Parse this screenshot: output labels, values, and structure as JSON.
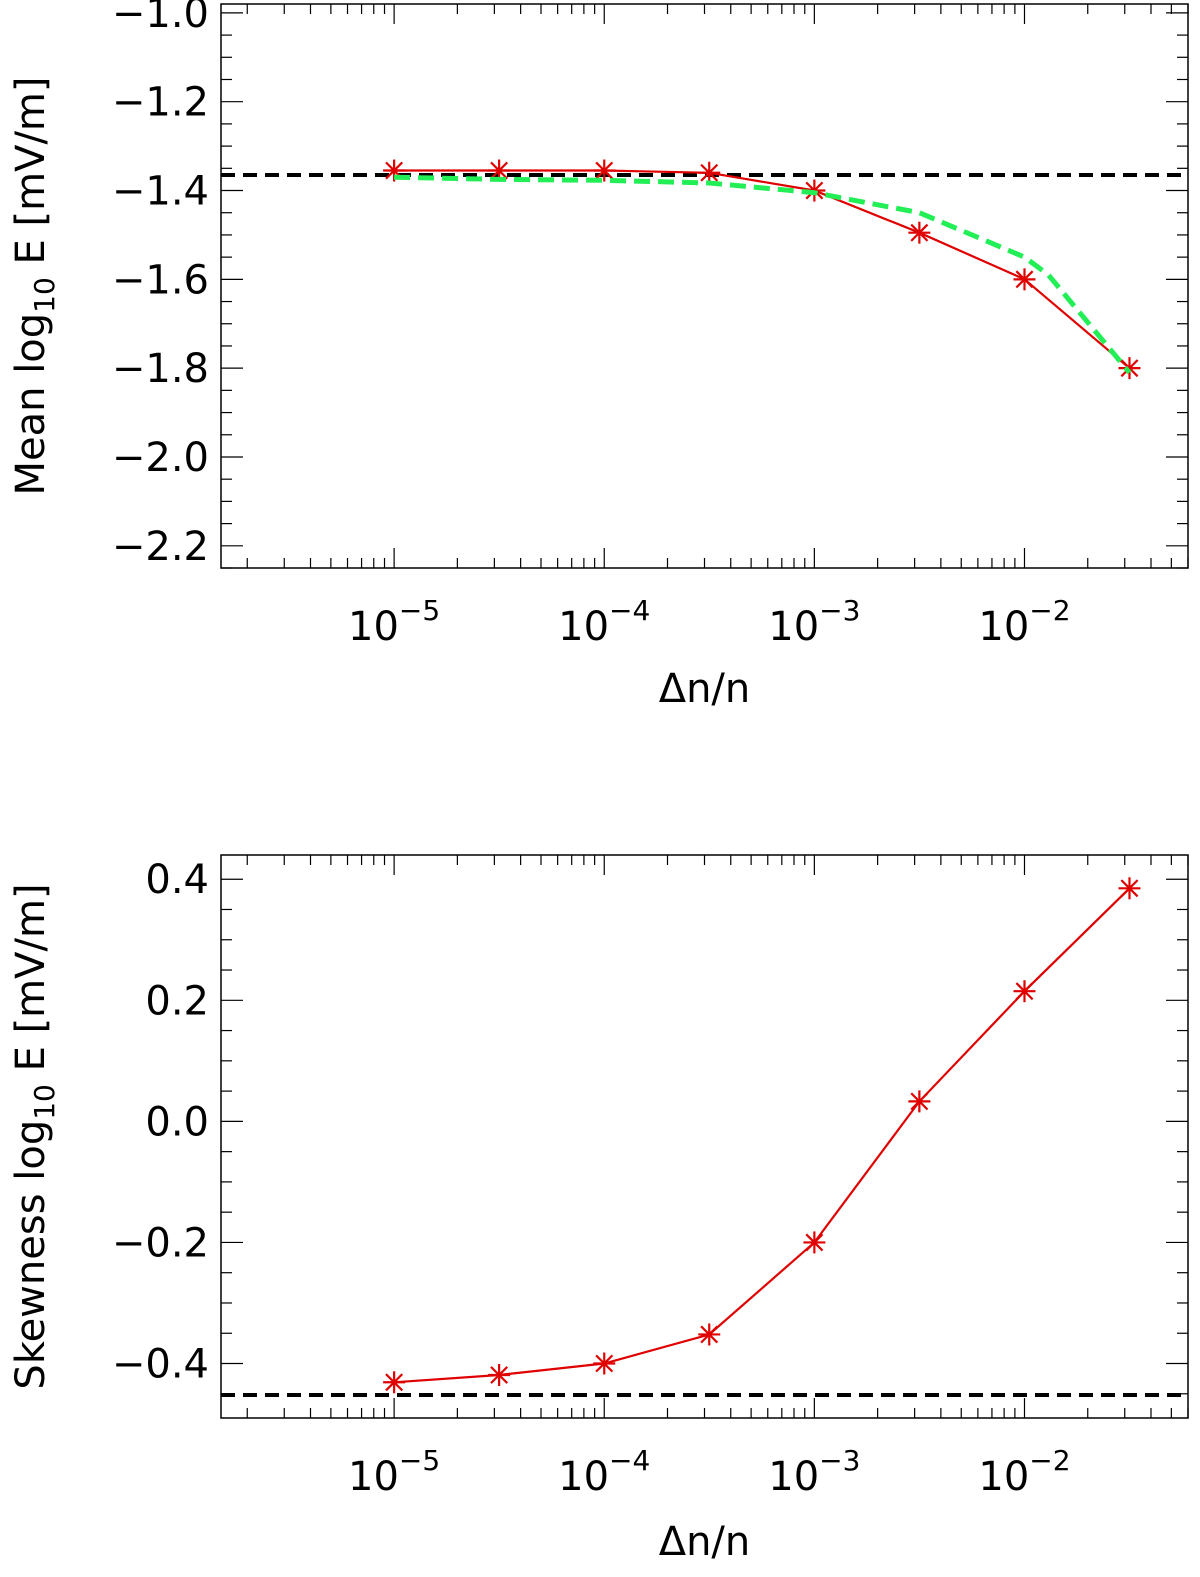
{
  "chart_data": [
    {
      "type": "line",
      "xscale": "log",
      "xlim": [
        1.5e-06,
        0.06
      ],
      "ylim": [
        -2.25,
        -0.98
      ],
      "x_ticks": [
        {
          "value": 1e-05,
          "base": "10",
          "exp": "−5"
        },
        {
          "value": 0.0001,
          "base": "10",
          "exp": "−4"
        },
        {
          "value": 0.001,
          "base": "10",
          "exp": "−3"
        },
        {
          "value": 0.01,
          "base": "10",
          "exp": "−2"
        }
      ],
      "y_ticks": [
        {
          "value": -1.0,
          "label": "−1.0"
        },
        {
          "value": -1.2,
          "label": "−1.2"
        },
        {
          "value": -1.4,
          "label": "−1.4"
        },
        {
          "value": -1.6,
          "label": "−1.6"
        },
        {
          "value": -1.8,
          "label": "−1.8"
        },
        {
          "value": -2.0,
          "label": "−2.0"
        },
        {
          "value": -2.2,
          "label": "−2.2"
        }
      ],
      "y_minor_step": 0.05,
      "xlabel": "Δn/n",
      "ylabel": {
        "pre": "Mean log",
        "sub": "10",
        "post": " E [mV/m]"
      },
      "reference_line": {
        "y": -1.365,
        "color": "#000000"
      },
      "series": [
        {
          "color": "#e00000",
          "marker": "asterisk",
          "x": [
            1e-05,
            3.16e-05,
            0.0001,
            0.000316,
            0.001,
            0.00316,
            0.01,
            0.0316
          ],
          "y": [
            -1.355,
            -1.355,
            -1.355,
            -1.36,
            -1.4,
            -1.495,
            -1.6,
            -1.8
          ]
        },
        {
          "color": "#22ee55",
          "dashed": true,
          "x": [
            1e-05,
            3.16e-05,
            0.0001,
            0.000316,
            0.001,
            0.00316,
            0.01,
            0.013,
            0.0316
          ],
          "y": [
            -1.37,
            -1.375,
            -1.377,
            -1.383,
            -1.405,
            -1.45,
            -1.55,
            -1.59,
            -1.81
          ]
        }
      ]
    },
    {
      "type": "line",
      "xscale": "log",
      "xlim": [
        1.5e-06,
        0.06
      ],
      "ylim": [
        -0.49,
        0.44
      ],
      "x_ticks": [
        {
          "value": 1e-05,
          "base": "10",
          "exp": "−5"
        },
        {
          "value": 0.0001,
          "base": "10",
          "exp": "−4"
        },
        {
          "value": 0.001,
          "base": "10",
          "exp": "−3"
        },
        {
          "value": 0.01,
          "base": "10",
          "exp": "−2"
        }
      ],
      "y_ticks": [
        {
          "value": 0.4,
          "label": "0.4"
        },
        {
          "value": 0.2,
          "label": "0.2"
        },
        {
          "value": 0.0,
          "label": "0.0"
        },
        {
          "value": -0.2,
          "label": "−0.2"
        },
        {
          "value": -0.4,
          "label": "−0.4"
        }
      ],
      "y_minor_step": 0.05,
      "xlabel": "Δn/n",
      "ylabel": {
        "pre": "Skewness log",
        "sub": "10",
        "post": " E [mV/m]"
      },
      "reference_line": {
        "y": -0.452,
        "color": "#000000"
      },
      "series": [
        {
          "color": "#e00000",
          "marker": "asterisk",
          "x": [
            1e-05,
            3.16e-05,
            0.0001,
            0.000316,
            0.001,
            0.00316,
            0.01,
            0.0316
          ],
          "y": [
            -0.431,
            -0.419,
            -0.4,
            -0.352,
            -0.2,
            0.033,
            0.215,
            0.385
          ]
        }
      ]
    }
  ]
}
